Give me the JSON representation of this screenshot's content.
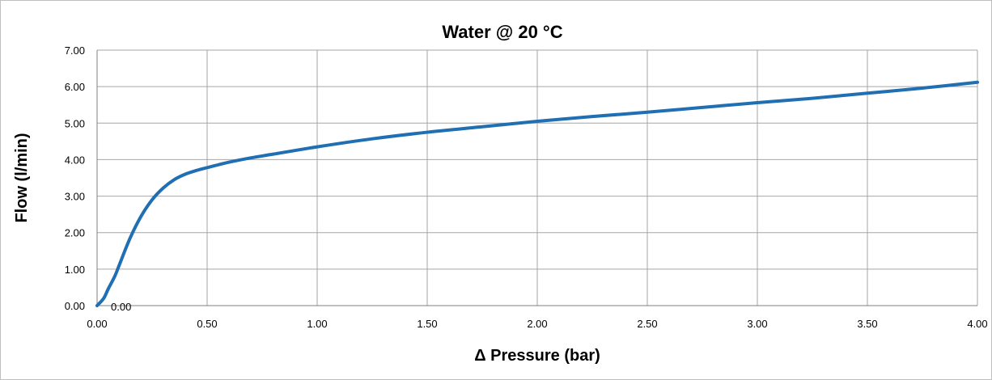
{
  "chart_data": {
    "type": "line",
    "title": "Water @ 20 °C",
    "xlabel": "Δ Pressure (bar)",
    "ylabel": "Flow (l/min)",
    "xlim": [
      0,
      4
    ],
    "ylim": [
      0,
      7
    ],
    "grid": true,
    "x_ticks": [
      "0.00",
      "0.50",
      "1.00",
      "1.50",
      "2.00",
      "2.50",
      "3.00",
      "3.50",
      "4.00"
    ],
    "y_ticks": [
      "0.00",
      "1.00",
      "2.00",
      "3.00",
      "4.00",
      "5.00",
      "6.00",
      "7.00"
    ],
    "annotation": "0.00",
    "line_color": "#1f6fb2",
    "series": [
      {
        "x": [
          0,
          0.03,
          0.05,
          0.08,
          0.1,
          0.15,
          0.2,
          0.25,
          0.3,
          0.35,
          0.4,
          0.45,
          0.5,
          0.6,
          0.7,
          0.8,
          1.0,
          1.25,
          1.5,
          1.75,
          2.0,
          2.25,
          2.5,
          2.75,
          3.0,
          3.25,
          3.5,
          3.75,
          4.0
        ],
        "y": [
          0,
          0.2,
          0.45,
          0.8,
          1.1,
          1.85,
          2.45,
          2.9,
          3.22,
          3.45,
          3.6,
          3.7,
          3.78,
          3.93,
          4.05,
          4.15,
          4.35,
          4.57,
          4.75,
          4.9,
          5.05,
          5.18,
          5.3,
          5.43,
          5.56,
          5.68,
          5.82,
          5.96,
          6.12
        ]
      }
    ]
  }
}
